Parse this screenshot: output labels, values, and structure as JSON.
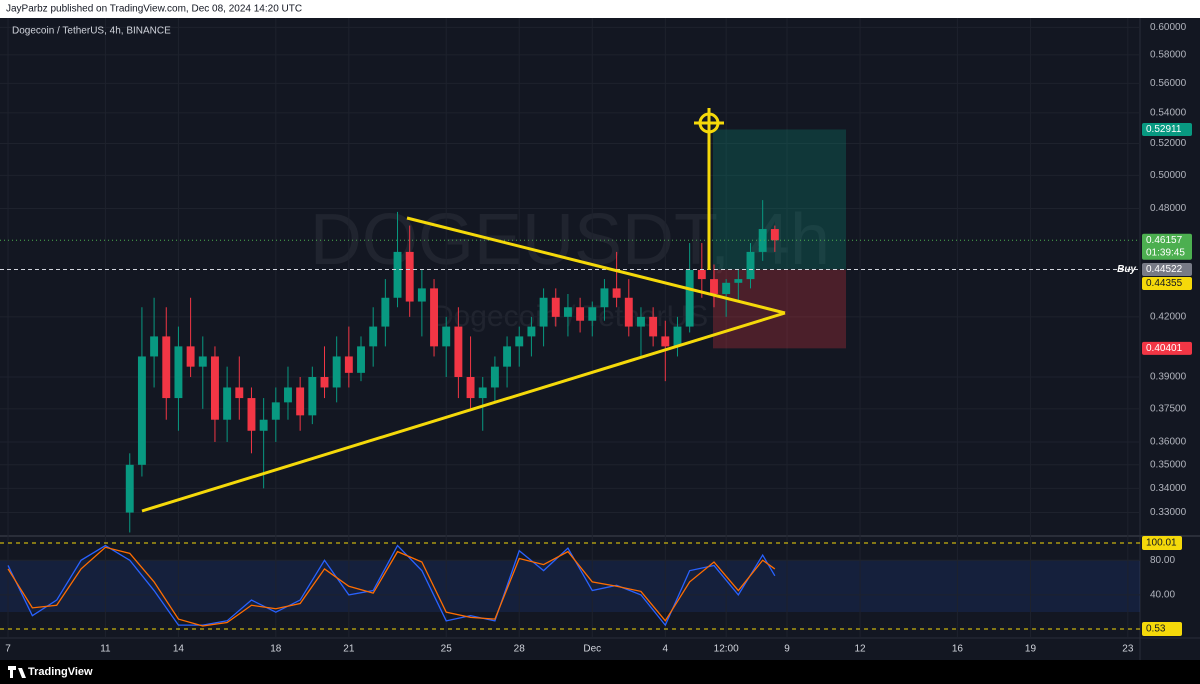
{
  "header": {
    "text": "JayParbz published on TradingView.com, Dec 08, 2024 14:20 UTC"
  },
  "chart_data": [
    {
      "type": "candlestick",
      "title": "Dogecoin / TetherUS, 4h, BINANCE",
      "watermark": "DOGEUSDT, 4h",
      "watermark_subtitle": "Dogecoin / TetherUS",
      "annotation": "Buy",
      "up_color": "#089981",
      "down_color": "#f23645",
      "log": true,
      "grid": true,
      "xlim": [
        -0.33,
        46.5
      ],
      "xticks": [
        {
          "value": 0,
          "label": "7"
        },
        {
          "value": 4,
          "label": "11"
        },
        {
          "value": 7,
          "label": "14"
        },
        {
          "value": 11,
          "label": "18"
        },
        {
          "value": 14,
          "label": "21"
        },
        {
          "value": 18,
          "label": "25"
        },
        {
          "value": 21,
          "label": "28"
        },
        {
          "value": 24,
          "label": "Dec"
        },
        {
          "value": 27,
          "label": "4"
        },
        {
          "value": 29.5,
          "label": "12:00"
        },
        {
          "value": 32,
          "label": "9"
        },
        {
          "value": 35,
          "label": "12"
        },
        {
          "value": 39,
          "label": "16"
        },
        {
          "value": 42,
          "label": "19"
        },
        {
          "value": 46,
          "label": "23"
        }
      ],
      "ylim": [
        0.321,
        0.607
      ],
      "yticks": [
        {
          "value": 0.6,
          "label": "0.60000"
        },
        {
          "value": 0.58,
          "label": "0.58000"
        },
        {
          "value": 0.56,
          "label": "0.56000"
        },
        {
          "value": 0.54,
          "label": "0.54000"
        },
        {
          "value": 0.52,
          "label": "0.52000"
        },
        {
          "value": 0.5,
          "label": "0.50000"
        },
        {
          "value": 0.48,
          "label": "0.48000"
        },
        {
          "value": 0.42,
          "label": "0.42000"
        },
        {
          "value": 0.39,
          "label": "0.39000"
        },
        {
          "value": 0.375,
          "label": "0.37500"
        },
        {
          "value": 0.36,
          "label": "0.36000"
        },
        {
          "value": 0.35,
          "label": "0.35000"
        },
        {
          "value": 0.34,
          "label": "0.34000"
        },
        {
          "value": 0.33,
          "label": "0.33000"
        }
      ],
      "x": [
        5.0,
        5.5,
        6.0,
        6.5,
        7.0,
        7.5,
        8.0,
        8.5,
        9.0,
        9.5,
        10.0,
        10.5,
        11.0,
        11.5,
        12.0,
        12.5,
        13.0,
        13.5,
        14.0,
        14.5,
        15.0,
        15.5,
        16.0,
        16.5,
        17.0,
        17.5,
        18.0,
        18.5,
        19.0,
        19.5,
        20.0,
        20.5,
        21.0,
        21.5,
        22.0,
        22.5,
        23.0,
        23.5,
        24.0,
        24.5,
        25.0,
        25.5,
        26.0,
        26.5,
        27.0,
        27.5,
        28.0,
        28.5,
        29.0,
        29.5,
        30.0,
        30.5,
        31.0,
        31.5
      ],
      "open": [
        0.33,
        0.35,
        0.4,
        0.41,
        0.38,
        0.405,
        0.395,
        0.4,
        0.37,
        0.385,
        0.38,
        0.365,
        0.37,
        0.378,
        0.385,
        0.372,
        0.39,
        0.385,
        0.4,
        0.392,
        0.405,
        0.415,
        0.43,
        0.455,
        0.428,
        0.435,
        0.405,
        0.415,
        0.39,
        0.38,
        0.385,
        0.395,
        0.405,
        0.41,
        0.415,
        0.43,
        0.42,
        0.425,
        0.418,
        0.425,
        0.435,
        0.43,
        0.415,
        0.42,
        0.41,
        0.405,
        0.415,
        0.445,
        0.44,
        0.432,
        0.438,
        0.44,
        0.455,
        0.468
      ],
      "high": [
        0.355,
        0.425,
        0.43,
        0.425,
        0.415,
        0.43,
        0.41,
        0.405,
        0.395,
        0.4,
        0.385,
        0.38,
        0.385,
        0.395,
        0.39,
        0.395,
        0.405,
        0.41,
        0.415,
        0.41,
        0.425,
        0.44,
        0.478,
        0.47,
        0.445,
        0.44,
        0.42,
        0.425,
        0.41,
        0.39,
        0.4,
        0.41,
        0.415,
        0.42,
        0.435,
        0.435,
        0.432,
        0.43,
        0.428,
        0.44,
        0.455,
        0.44,
        0.425,
        0.425,
        0.418,
        0.42,
        0.46,
        0.46,
        0.448,
        0.44,
        0.445,
        0.46,
        0.485,
        0.47
      ],
      "low": [
        0.322,
        0.345,
        0.385,
        0.37,
        0.365,
        0.39,
        0.375,
        0.36,
        0.36,
        0.37,
        0.355,
        0.34,
        0.36,
        0.37,
        0.365,
        0.368,
        0.38,
        0.378,
        0.385,
        0.388,
        0.395,
        0.405,
        0.425,
        0.42,
        0.41,
        0.4,
        0.39,
        0.38,
        0.375,
        0.365,
        0.378,
        0.385,
        0.395,
        0.4,
        0.405,
        0.415,
        0.41,
        0.412,
        0.41,
        0.418,
        0.425,
        0.41,
        0.4,
        0.405,
        0.388,
        0.4,
        0.412,
        0.43,
        0.425,
        0.42,
        0.428,
        0.435,
        0.45,
        0.455
      ],
      "close": [
        0.35,
        0.4,
        0.41,
        0.38,
        0.405,
        0.395,
        0.4,
        0.37,
        0.385,
        0.38,
        0.365,
        0.37,
        0.378,
        0.385,
        0.372,
        0.39,
        0.385,
        0.4,
        0.392,
        0.405,
        0.415,
        0.43,
        0.455,
        0.428,
        0.435,
        0.405,
        0.415,
        0.39,
        0.38,
        0.385,
        0.395,
        0.405,
        0.41,
        0.415,
        0.43,
        0.42,
        0.425,
        0.418,
        0.425,
        0.435,
        0.43,
        0.415,
        0.42,
        0.41,
        0.405,
        0.415,
        0.445,
        0.44,
        0.432,
        0.438,
        0.44,
        0.455,
        0.468,
        0.46157
      ],
      "price_labels": [
        {
          "value": 0.52911,
          "color": "#089981"
        },
        {
          "value": 0.46157,
          "color": "#4caf50",
          "countdown": "01:39:45",
          "line": "dotted"
        },
        {
          "value": 0.44522,
          "color": "#787b86",
          "line": "dashed"
        },
        {
          "value": 0.44355,
          "color": "#f5d90a"
        },
        {
          "value": 0.40401,
          "color": "#f23645"
        }
      ]
    },
    {
      "type": "line",
      "xlim": [
        -0.33,
        46.5
      ],
      "ylim": [
        -8.7,
        106.9
      ],
      "yticks": [
        {
          "value": 80,
          "label": "80.00"
        },
        {
          "value": 40,
          "label": "40.00"
        }
      ],
      "levels": [
        100.01,
        0.53
      ],
      "x": [
        0,
        1,
        2,
        3,
        4,
        5,
        6,
        7,
        8,
        9,
        10,
        11,
        12,
        13,
        14,
        15,
        16,
        17,
        18,
        19,
        20,
        21,
        22,
        23,
        24,
        25,
        26,
        27,
        28,
        29,
        30,
        31,
        31.5
      ],
      "series": [
        {
          "color": "#2962ff",
          "values": [
            74,
            16,
            34,
            80,
            97,
            80,
            45,
            5,
            5,
            10,
            34,
            20,
            34,
            80,
            40,
            45,
            97,
            68,
            10,
            16,
            10,
            91,
            68,
            94,
            45,
            51,
            40,
            5,
            68,
            74,
            40,
            86,
            62
          ]
        },
        {
          "color": "#ff6d00",
          "values": [
            70,
            25,
            28,
            70,
            95,
            88,
            55,
            12,
            4,
            8,
            28,
            24,
            30,
            70,
            50,
            42,
            90,
            78,
            20,
            14,
            12,
            82,
            75,
            90,
            55,
            50,
            44,
            10,
            55,
            78,
            45,
            80,
            70
          ]
        }
      ]
    }
  ],
  "footer": {
    "brand": "TradingView"
  }
}
